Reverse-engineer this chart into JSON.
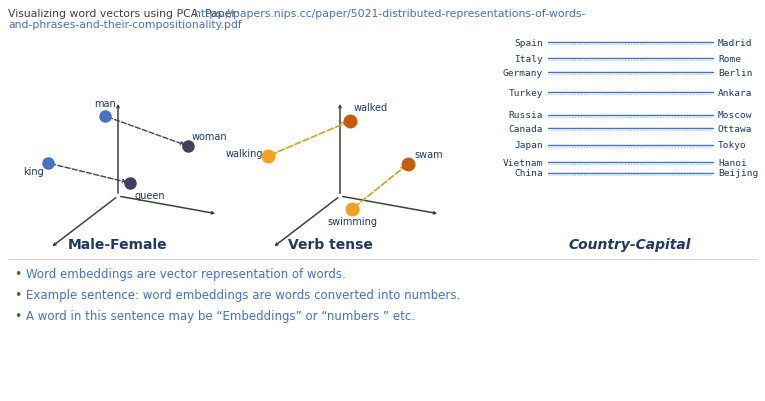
{
  "bg_color": "#ffffff",
  "title_plain": "Visualizing word vectors using PCA. Paper: ",
  "title_link1": "https://papers.nips.cc/paper/5021-distributed-representations-of-words-",
  "title_link2": "and-phrases-and-their-compositionality.pdf",
  "title_plain_color": "#404040",
  "title_link_color": "#4472c4",
  "bullet_points": [
    "Word embeddings are vector representation of words.",
    "Example sentence: word embeddings are words converted into numbers.",
    "A word in this sentence may be “Embeddings” or “numbers ” etc."
  ],
  "bullet_color": "#4472c4",
  "section1_label": "Male-Female",
  "section2_label": "Verb tense",
  "section3_label": "Country-Capital",
  "label_color": "#1f3864",
  "country_capital": [
    {
      "country": "Spain",
      "capital": "Madrid",
      "group": 0
    },
    {
      "country": "Italy",
      "capital": "Rome",
      "group": 0
    },
    {
      "country": "Germany",
      "capital": "Berlin",
      "group": 0
    },
    {
      "country": "Turkey",
      "capital": "Ankara",
      "group": 1
    },
    {
      "country": "Russia",
      "capital": "Moscow",
      "group": 2
    },
    {
      "country": "Canada",
      "capital": "Ottawa",
      "group": 2
    },
    {
      "country": "Japan",
      "capital": "Tokyo",
      "group": 3
    },
    {
      "country": "Vietnam",
      "capital": "Hanoi",
      "group": 4
    },
    {
      "country": "China",
      "capital": "Beijing",
      "group": 4
    }
  ],
  "line_color_solid": "#4472c4",
  "line_color_dot": "#92cddc",
  "axis_color": "#404040",
  "word_color": "#1f3864",
  "dot_blue": "#4472c4",
  "dot_orange_light": "#f4a020",
  "dot_orange_dark": "#c55a11",
  "dot_gray_dark": "#404060",
  "dot_gray_light": "#8080a0"
}
